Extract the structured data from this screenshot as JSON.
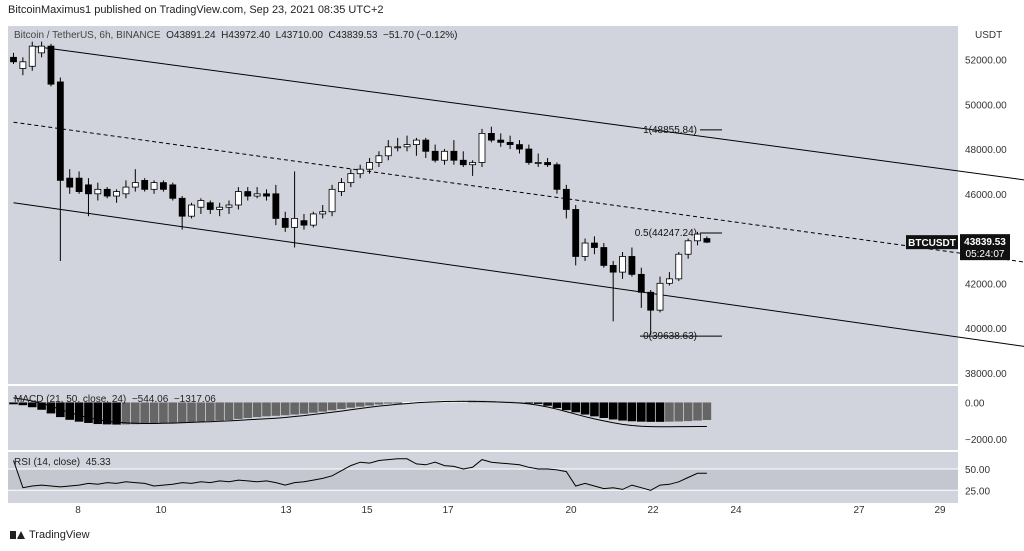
{
  "header": {
    "attribution": "BitcoinMaximus1 published on TradingView.com, Sep 23, 2021 08:35 UTC+2",
    "symbol_desc": "Bitcoin / TetherUS, 6h, BINANCE",
    "open": "O43891.24",
    "high": "H43972.40",
    "low": "L43710.00",
    "close": "C43839.53",
    "change": "−51.70 (−0.12%)"
  },
  "axis": {
    "currency": "USDT",
    "price_ticks": [
      "52000.00",
      "50000.00",
      "48000.00",
      "46000.00",
      "44000.00",
      "42000.00",
      "40000.00",
      "38000.00"
    ],
    "x_ticks": [
      "8",
      "10",
      "13",
      "15",
      "17",
      "20",
      "22",
      "24",
      "27",
      "29"
    ]
  },
  "price_tag": {
    "symbol": "BTCUSDT",
    "price": "43839.53",
    "countdown": "05:24:07"
  },
  "fib_labels": [
    "1(48855.84)",
    "0.5(44247.24)",
    "0(39638.63)"
  ],
  "macd": {
    "label": "MACD (21, 50, close, 24)",
    "v1": "−544.06",
    "v2": "−1317.06",
    "ticks": [
      "0.00",
      "−2000.00"
    ]
  },
  "rsi": {
    "label": "RSI (14, close)",
    "value": "45.33",
    "ticks": [
      "50.00",
      "25.00"
    ]
  },
  "footer": {
    "brand": "TradingView"
  },
  "colors": {
    "bg": "#d1d4dc",
    "up": "#ffffff",
    "down": "#000000",
    "line": "#000000"
  },
  "chart_data": {
    "type": "candlestick",
    "price_range": [
      37500,
      53500
    ],
    "candles": [
      {
        "x": 0,
        "o": 52100,
        "h": 52300,
        "l": 51800,
        "c": 51900
      },
      {
        "x": 1,
        "o": 51600,
        "h": 52100,
        "l": 51300,
        "c": 51900
      },
      {
        "x": 2,
        "o": 51700,
        "h": 52800,
        "l": 51500,
        "c": 52600
      },
      {
        "x": 3,
        "o": 52300,
        "h": 52800,
        "l": 52100,
        "c": 52600
      },
      {
        "x": 4,
        "o": 52600,
        "h": 52700,
        "l": 50800,
        "c": 50900
      },
      {
        "x": 5,
        "o": 51000,
        "h": 51200,
        "l": 43000,
        "c": 46600
      },
      {
        "x": 6,
        "o": 46700,
        "h": 47100,
        "l": 46000,
        "c": 46300
      },
      {
        "x": 7,
        "o": 46700,
        "h": 47000,
        "l": 46000,
        "c": 46100
      },
      {
        "x": 8,
        "o": 46400,
        "h": 46700,
        "l": 45000,
        "c": 46000
      },
      {
        "x": 9,
        "o": 46000,
        "h": 46500,
        "l": 45700,
        "c": 46200
      },
      {
        "x": 10,
        "o": 46200,
        "h": 46300,
        "l": 45800,
        "c": 45900
      },
      {
        "x": 11,
        "o": 45900,
        "h": 46200,
        "l": 45600,
        "c": 46100
      },
      {
        "x": 12,
        "o": 46000,
        "h": 46600,
        "l": 45800,
        "c": 46300
      },
      {
        "x": 13,
        "o": 46300,
        "h": 47100,
        "l": 46100,
        "c": 46500
      },
      {
        "x": 14,
        "o": 46600,
        "h": 46700,
        "l": 46100,
        "c": 46200
      },
      {
        "x": 15,
        "o": 46200,
        "h": 46600,
        "l": 46000,
        "c": 46500
      },
      {
        "x": 16,
        "o": 46500,
        "h": 46600,
        "l": 46100,
        "c": 46200
      },
      {
        "x": 17,
        "o": 46400,
        "h": 46500,
        "l": 45700,
        "c": 45800
      },
      {
        "x": 18,
        "o": 45800,
        "h": 45900,
        "l": 44400,
        "c": 45000
      },
      {
        "x": 19,
        "o": 45000,
        "h": 45600,
        "l": 44900,
        "c": 45500
      },
      {
        "x": 20,
        "o": 45400,
        "h": 45800,
        "l": 45100,
        "c": 45700
      },
      {
        "x": 21,
        "o": 45600,
        "h": 45700,
        "l": 45100,
        "c": 45300
      },
      {
        "x": 22,
        "o": 45300,
        "h": 45600,
        "l": 45000,
        "c": 45400
      },
      {
        "x": 23,
        "o": 45400,
        "h": 45700,
        "l": 45100,
        "c": 45500
      },
      {
        "x": 24,
        "o": 45500,
        "h": 46300,
        "l": 45300,
        "c": 46100
      },
      {
        "x": 25,
        "o": 46100,
        "h": 46300,
        "l": 45700,
        "c": 45900
      },
      {
        "x": 26,
        "o": 45900,
        "h": 46300,
        "l": 45800,
        "c": 46000
      },
      {
        "x": 27,
        "o": 46000,
        "h": 46200,
        "l": 45700,
        "c": 45900
      },
      {
        "x": 28,
        "o": 46000,
        "h": 46400,
        "l": 44600,
        "c": 44900
      },
      {
        "x": 29,
        "o": 44900,
        "h": 45200,
        "l": 44300,
        "c": 44500
      },
      {
        "x": 30,
        "o": 44500,
        "h": 47000,
        "l": 43600,
        "c": 44900
      },
      {
        "x": 31,
        "o": 44800,
        "h": 45100,
        "l": 44400,
        "c": 44600
      },
      {
        "x": 32,
        "o": 44600,
        "h": 45200,
        "l": 44500,
        "c": 45100
      },
      {
        "x": 33,
        "o": 45100,
        "h": 45500,
        "l": 44900,
        "c": 45200
      },
      {
        "x": 34,
        "o": 45200,
        "h": 46400,
        "l": 45000,
        "c": 46200
      },
      {
        "x": 35,
        "o": 46100,
        "h": 46700,
        "l": 45900,
        "c": 46500
      },
      {
        "x": 36,
        "o": 46500,
        "h": 47100,
        "l": 46300,
        "c": 46900
      },
      {
        "x": 37,
        "o": 46900,
        "h": 47300,
        "l": 46700,
        "c": 47100
      },
      {
        "x": 38,
        "o": 47100,
        "h": 47600,
        "l": 46900,
        "c": 47400
      },
      {
        "x": 39,
        "o": 47400,
        "h": 47900,
        "l": 47200,
        "c": 47700
      },
      {
        "x": 40,
        "o": 47700,
        "h": 48400,
        "l": 47500,
        "c": 48100
      },
      {
        "x": 41,
        "o": 48100,
        "h": 48500,
        "l": 47900,
        "c": 48100
      },
      {
        "x": 42,
        "o": 48100,
        "h": 48600,
        "l": 47900,
        "c": 48200
      },
      {
        "x": 43,
        "o": 48200,
        "h": 48500,
        "l": 47700,
        "c": 48400
      },
      {
        "x": 44,
        "o": 48400,
        "h": 48500,
        "l": 47600,
        "c": 47900
      },
      {
        "x": 45,
        "o": 47900,
        "h": 48200,
        "l": 47400,
        "c": 47500
      },
      {
        "x": 46,
        "o": 47500,
        "h": 48000,
        "l": 47300,
        "c": 47900
      },
      {
        "x": 47,
        "o": 47900,
        "h": 48400,
        "l": 47300,
        "c": 47500
      },
      {
        "x": 48,
        "o": 47500,
        "h": 47900,
        "l": 47200,
        "c": 47300
      },
      {
        "x": 49,
        "o": 47300,
        "h": 47500,
        "l": 46800,
        "c": 47400
      },
      {
        "x": 50,
        "o": 47400,
        "h": 48900,
        "l": 47200,
        "c": 48700
      },
      {
        "x": 51,
        "o": 48700,
        "h": 49000,
        "l": 48300,
        "c": 48400
      },
      {
        "x": 52,
        "o": 48400,
        "h": 48700,
        "l": 48100,
        "c": 48300
      },
      {
        "x": 53,
        "o": 48300,
        "h": 48600,
        "l": 48000,
        "c": 48200
      },
      {
        "x": 54,
        "o": 48200,
        "h": 48400,
        "l": 47800,
        "c": 48000
      },
      {
        "x": 55,
        "o": 48000,
        "h": 48200,
        "l": 47300,
        "c": 47400
      },
      {
        "x": 56,
        "o": 47400,
        "h": 47800,
        "l": 47200,
        "c": 47400
      },
      {
        "x": 57,
        "o": 47400,
        "h": 47600,
        "l": 47200,
        "c": 47300
      },
      {
        "x": 58,
        "o": 47300,
        "h": 47400,
        "l": 46000,
        "c": 46200
      },
      {
        "x": 59,
        "o": 46200,
        "h": 46400,
        "l": 44900,
        "c": 45300
      },
      {
        "x": 60,
        "o": 45300,
        "h": 45500,
        "l": 42800,
        "c": 43200
      },
      {
        "x": 61,
        "o": 43200,
        "h": 44000,
        "l": 43000,
        "c": 43800
      },
      {
        "x": 62,
        "o": 43800,
        "h": 44100,
        "l": 43300,
        "c": 43600
      },
      {
        "x": 63,
        "o": 43600,
        "h": 43800,
        "l": 42700,
        "c": 42800
      },
      {
        "x": 64,
        "o": 42800,
        "h": 43000,
        "l": 40300,
        "c": 42500
      },
      {
        "x": 65,
        "o": 42500,
        "h": 43400,
        "l": 42200,
        "c": 43200
      },
      {
        "x": 66,
        "o": 43200,
        "h": 43600,
        "l": 42300,
        "c": 42400
      },
      {
        "x": 67,
        "o": 42400,
        "h": 42700,
        "l": 40900,
        "c": 41600
      },
      {
        "x": 68,
        "o": 41600,
        "h": 41700,
        "l": 39700,
        "c": 40800
      },
      {
        "x": 69,
        "o": 40800,
        "h": 42300,
        "l": 40700,
        "c": 42000
      },
      {
        "x": 70,
        "o": 42000,
        "h": 42500,
        "l": 41900,
        "c": 42200
      },
      {
        "x": 71,
        "o": 42200,
        "h": 43400,
        "l": 42100,
        "c": 43300
      },
      {
        "x": 72,
        "o": 43300,
        "h": 44000,
        "l": 43100,
        "c": 43900
      },
      {
        "x": 73,
        "o": 43900,
        "h": 44300,
        "l": 43700,
        "c": 44200
      },
      {
        "x": 74,
        "o": 44000,
        "h": 44100,
        "l": 43800,
        "c": 43839
      }
    ],
    "channel": {
      "upper": [
        {
          "x": 2,
          "p": 52600
        },
        {
          "x": 126,
          "p": 45600
        }
      ],
      "middle": [
        {
          "x": 0,
          "p": 49200
        },
        {
          "x": 126,
          "p": 41900
        }
      ],
      "lower": [
        {
          "x": 0,
          "p": 45600
        },
        {
          "x": 126,
          "p": 38100
        }
      ]
    },
    "fib_levels": [
      {
        "label": "1(48855.84)",
        "value": 48855.84
      },
      {
        "label": "0.5(44247.24)",
        "value": 44247.24
      },
      {
        "label": "0(39638.63)",
        "value": 39638.63
      }
    ],
    "macd_histogram": [
      -100,
      -150,
      -260,
      -400,
      -600,
      -800,
      -950,
      -1050,
      -1120,
      -1180,
      -1200,
      -1210,
      -1200,
      -1190,
      -1180,
      -1170,
      -1150,
      -1130,
      -1100,
      -1080,
      -1050,
      -1020,
      -990,
      -960,
      -900,
      -850,
      -800,
      -760,
      -730,
      -700,
      -660,
      -620,
      -560,
      -500,
      -430,
      -360,
      -290,
      -230,
      -170,
      -110,
      -60,
      -20,
      20,
      50,
      70,
      90,
      100,
      110,
      110,
      100,
      90,
      80,
      60,
      40,
      20,
      -20,
      -80,
      -180,
      -300,
      -420,
      -540,
      -660,
      -760,
      -850,
      -930,
      -990,
      -1030,
      -1050,
      -1060,
      -1060,
      -1050,
      -1040,
      -1020,
      -990,
      -960
    ],
    "macd_line": [
      250,
      180,
      80,
      -50,
      -200,
      -380,
      -550,
      -700,
      -830,
      -940,
      -1020,
      -1080,
      -1120,
      -1140,
      -1150,
      -1150,
      -1140,
      -1130,
      -1110,
      -1090,
      -1070,
      -1050,
      -1030,
      -1010,
      -980,
      -950,
      -920,
      -890,
      -860,
      -820,
      -770,
      -720,
      -660,
      -600,
      -540,
      -470,
      -400,
      -330,
      -260,
      -200,
      -150,
      -100,
      -60,
      -20,
      10,
      30,
      50,
      60,
      70,
      60,
      50,
      40,
      20,
      0,
      -30,
      -80,
      -150,
      -250,
      -370,
      -500,
      -640,
      -780,
      -900,
      -1010,
      -1110,
      -1200,
      -1260,
      -1300,
      -1320,
      -1330,
      -1330,
      -1320,
      -1320,
      -1317,
      -1317
    ],
    "rsi": [
      60,
      28,
      30,
      31,
      30,
      29,
      30,
      31,
      33,
      32,
      34,
      33,
      35,
      34,
      33,
      30,
      31,
      32,
      34,
      33,
      35,
      34,
      36,
      35,
      37,
      36,
      35,
      36,
      34,
      31,
      34,
      35,
      37,
      39,
      42,
      48,
      54,
      58,
      57,
      60,
      61,
      62,
      62,
      56,
      55,
      58,
      54,
      53,
      50,
      52,
      61,
      58,
      57,
      56,
      55,
      52,
      50,
      50,
      49,
      47,
      30,
      33,
      30,
      27,
      28,
      26,
      31,
      28,
      25,
      31,
      32,
      35,
      40,
      45,
      45
    ]
  }
}
